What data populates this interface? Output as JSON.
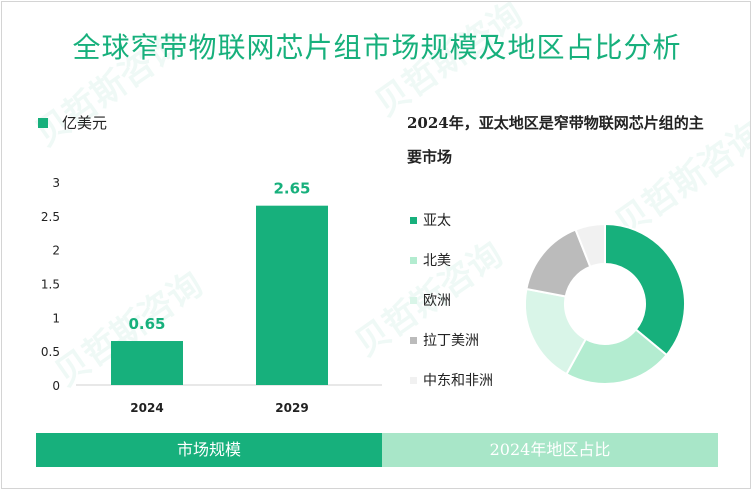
{
  "title": "全球窄带物联网芯片组市场规模及地区占比分析",
  "watermark": "贝哲斯咨询",
  "bar_unit": "亿美元",
  "pie_title": "2024年，亚太地区是窄带物联网芯片组的主要市场",
  "footer": {
    "left": "市场规模",
    "right": "2024年地区占比"
  },
  "colors": {
    "accent": "#17b07c",
    "light": "#a8e6c8"
  },
  "chart_data": [
    {
      "type": "bar",
      "categories": [
        "2024",
        "2029"
      ],
      "values": [
        0.65,
        2.65
      ],
      "ylim": [
        0,
        3
      ],
      "yticks": [
        "0",
        "0.5",
        "1",
        "1.5",
        "2",
        "2.5",
        "3"
      ],
      "legend": "亿美元"
    },
    {
      "type": "pie",
      "labels": [
        "亚太",
        "北美",
        "欧洲",
        "拉丁美洲",
        "中东和非洲"
      ],
      "values": [
        36,
        22,
        20,
        16,
        6
      ],
      "colors": [
        "#17b07c",
        "#b3ecd0",
        "#d9f5e8",
        "#bbbbbb",
        "#f1f1f1"
      ]
    }
  ]
}
